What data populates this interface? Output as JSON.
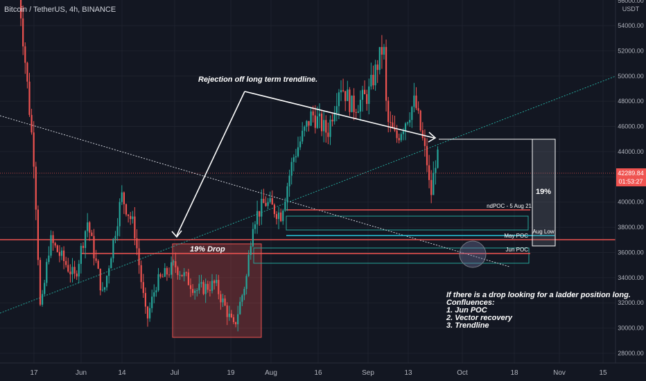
{
  "header": {
    "title": "Bitcoin / TetherUS, 4h, BINANCE"
  },
  "axis": {
    "currency": "USDT",
    "top_partial_label": "56000.00",
    "price_ticks": [
      "54000.00",
      "52000.00",
      "50000.00",
      "48000.00",
      "46000.00",
      "44000.00",
      "42000.00",
      "40000.00",
      "38000.00",
      "36000.00",
      "34000.00",
      "32000.00",
      "30000.00",
      "28000.00"
    ],
    "time_ticks": [
      "17",
      "Jun",
      "14",
      "Jul",
      "19",
      "Aug",
      "16",
      "Sep",
      "13",
      "Oct",
      "18",
      "Nov",
      "15"
    ]
  },
  "current_price": {
    "value": "42289.84",
    "countdown": "01:53:27"
  },
  "annotations": {
    "trendline_note": "Rejection off long term trendline.",
    "drop_label": "19% Drop",
    "box_pct": "19%",
    "ndpoc": "ndPOC - 5 Aug 21",
    "may_poc": "May POC",
    "jun_poc": "Jun POC",
    "aug_low": "Aug Low",
    "note_lines": [
      "If there is a drop looking for a ladder position long.",
      "Confluences:",
      "1. Jun POC",
      "2. Vector recovery",
      "3. Trendline"
    ]
  },
  "colors": {
    "background": "#131722",
    "up": "#26a69a",
    "down": "#ef5350",
    "grid": "#1e222d",
    "axis_text": "#b2b5be",
    "price_tag": "#ef5350",
    "poc_line": "#ef5350",
    "may_poc": "#26c6da"
  },
  "chart_data": {
    "type": "candlestick",
    "symbol": "Bitcoin / TetherUS",
    "interval": "4h",
    "exchange": "BINANCE",
    "ylim": [
      27000,
      56500
    ],
    "x_ticks": [
      "17",
      "Jun",
      "14",
      "Jul",
      "19",
      "Aug",
      "16",
      "Sep",
      "13",
      "Oct",
      "18",
      "Nov",
      "15"
    ],
    "series": [
      {
        "name": "BTCUSDT",
        "keypoints": [
          {
            "date": "2021-05-12",
            "close": 57000
          },
          {
            "date": "2021-05-17",
            "close": 43000
          },
          {
            "date": "2021-05-19",
            "close": 31000
          },
          {
            "date": "2021-05-22",
            "close": 37000
          },
          {
            "date": "2021-05-30",
            "close": 34000
          },
          {
            "date": "2021-06-03",
            "close": 38500
          },
          {
            "date": "2021-06-08",
            "close": 32500
          },
          {
            "date": "2021-06-14",
            "close": 40500
          },
          {
            "date": "2021-06-18",
            "close": 38000
          },
          {
            "date": "2021-06-22",
            "close": 30500
          },
          {
            "date": "2021-06-25",
            "close": 33500
          },
          {
            "date": "2021-07-01",
            "close": 35000
          },
          {
            "date": "2021-07-08",
            "close": 33000
          },
          {
            "date": "2021-07-14",
            "close": 33500
          },
          {
            "date": "2021-07-20",
            "close": 30000
          },
          {
            "date": "2021-07-24",
            "close": 34000
          },
          {
            "date": "2021-07-26",
            "close": 38500
          },
          {
            "date": "2021-07-30",
            "close": 40000
          },
          {
            "date": "2021-08-04",
            "close": 39000
          },
          {
            "date": "2021-08-08",
            "close": 43500
          },
          {
            "date": "2021-08-14",
            "close": 47000
          },
          {
            "date": "2021-08-19",
            "close": 45500
          },
          {
            "date": "2021-08-23",
            "close": 49500
          },
          {
            "date": "2021-08-27",
            "close": 47500
          },
          {
            "date": "2021-09-01",
            "close": 48500
          },
          {
            "date": "2021-09-06",
            "close": 52500
          },
          {
            "date": "2021-09-07",
            "close": 46500
          },
          {
            "date": "2021-09-10",
            "close": 45000
          },
          {
            "date": "2021-09-16",
            "close": 48000
          },
          {
            "date": "2021-09-20",
            "close": 43000
          },
          {
            "date": "2021-09-21",
            "close": 40200
          },
          {
            "date": "2021-09-23",
            "close": 44000
          },
          {
            "date": "2021-09-24",
            "close": 42289.84
          }
        ]
      }
    ],
    "levels": [
      {
        "name": "ndPOC - 5 Aug 21",
        "price": 39400
      },
      {
        "name": "May POC",
        "price": 37300
      },
      {
        "name": "Jun POC",
        "price": 35900
      },
      {
        "name": "Aug Low",
        "price": 37300
      }
    ],
    "drop_pct": "19%"
  }
}
